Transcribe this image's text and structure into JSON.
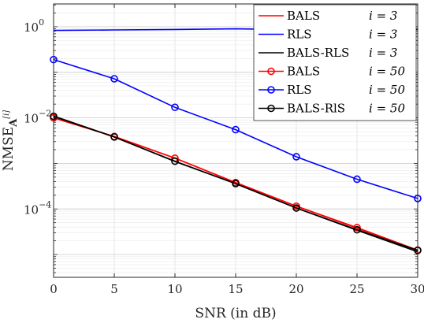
{
  "chart_data": {
    "type": "line",
    "xlabel": "SNR (in dB)",
    "ylabel": "NMSE",
    "ylabel_subscript": "A",
    "ylabel_superscript": "[i]",
    "xlim": [
      0,
      30
    ],
    "ylim_log10": [
      -5.5,
      0.5
    ],
    "yscale": "log",
    "grid": true,
    "legend_position": "top-right",
    "x_ticks": [
      0,
      5,
      10,
      15,
      20,
      25,
      30
    ],
    "x_tick_labels": [
      "0",
      "5",
      "10",
      "15",
      "20",
      "25",
      "30"
    ],
    "y_ticks_exp": [
      0,
      -2,
      -4
    ],
    "y_tick_base": "10",
    "y_tick_exponents": [
      "0",
      "−2",
      "−4"
    ],
    "x": [
      0,
      5,
      10,
      15,
      20,
      25,
      30
    ],
    "series": [
      {
        "name": "BALS",
        "iter": "i = 3",
        "color": "#ff0000",
        "marker": "none",
        "values": [
          0.01,
          0.0039,
          0.0013,
          0.00038,
          0.000115,
          3.8e-05,
          1.25e-05
        ]
      },
      {
        "name": "RLS",
        "iter": "i = 3",
        "color": "#0000ff",
        "marker": "none",
        "values": [
          0.83,
          0.85,
          0.87,
          0.9,
          0.86,
          0.86,
          0.87
        ]
      },
      {
        "name": "BALS-RLS",
        "iter": "i = 3",
        "color": "#000000",
        "marker": "none",
        "values": [
          0.011,
          0.0038,
          0.0011,
          0.00036,
          0.000105,
          3.4e-05,
          1.15e-05
        ]
      },
      {
        "name": "BALS",
        "iter": "i = 50",
        "color": "#ff0000",
        "marker": "circle",
        "values": [
          0.01,
          0.0039,
          0.0013,
          0.00038,
          0.000115,
          3.9e-05,
          1.25e-05
        ]
      },
      {
        "name": "RLS",
        "iter": "i = 50",
        "color": "#0000ff",
        "marker": "circle",
        "values": [
          0.19,
          0.072,
          0.017,
          0.0055,
          0.0014,
          0.00045,
          0.00017
        ]
      },
      {
        "name": "BALS-RlS",
        "iter": "i = 50",
        "color": "#000000",
        "marker": "circle",
        "values": [
          0.0108,
          0.0038,
          0.00112,
          0.00036,
          0.000105,
          3.5e-05,
          1.23e-05
        ]
      }
    ]
  }
}
